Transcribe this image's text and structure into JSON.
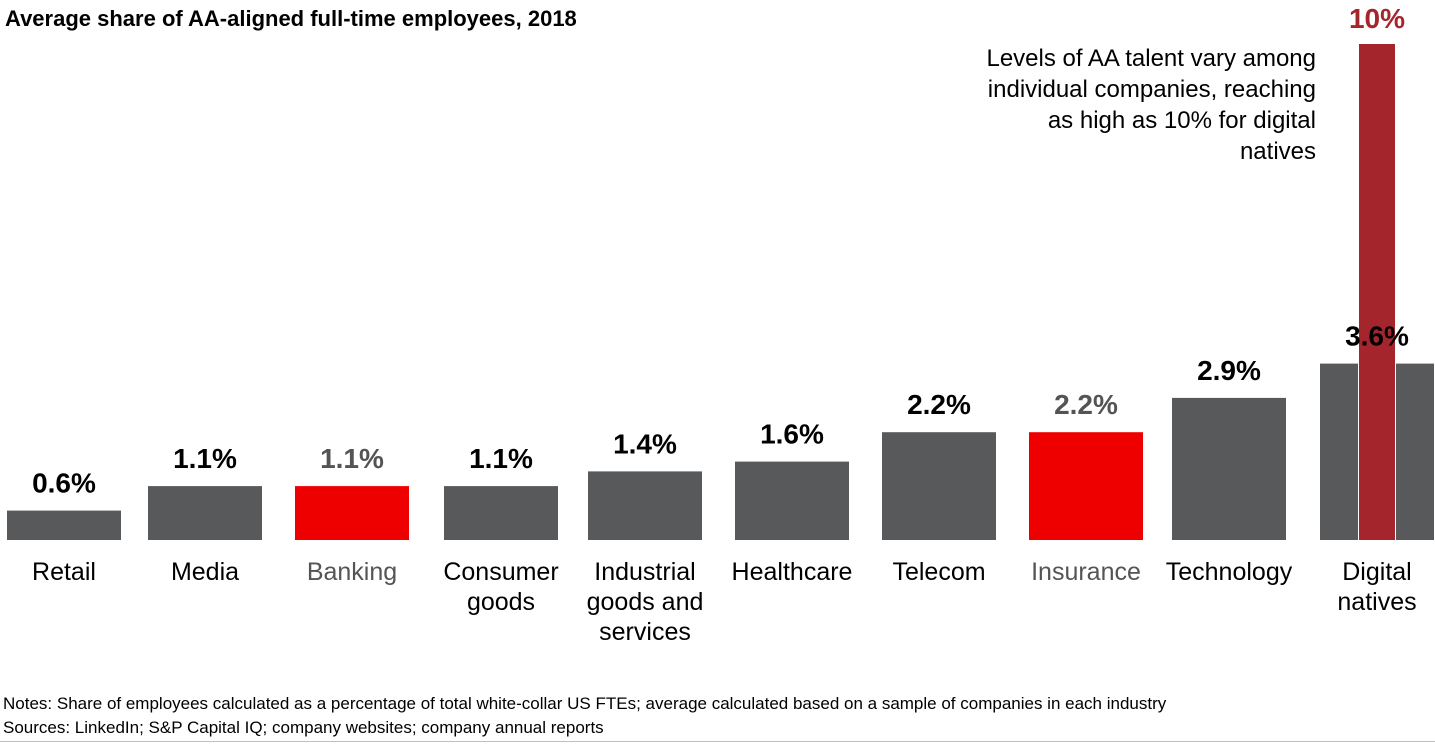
{
  "colors": {
    "default_bar": "#58595b",
    "highlight_bar": "#ee0000",
    "max_bar": "#a4262c",
    "text": "#000000",
    "highlight_text": "#545454"
  },
  "chart_data": {
    "type": "bar",
    "title": "Average share of AA-aligned full-time employees, 2018",
    "xlabel": "",
    "ylabel": "",
    "ylim": [
      0,
      10
    ],
    "grid": false,
    "categories": [
      "Retail",
      "Media",
      "Banking",
      "Consumer goods",
      "Industrial goods and services",
      "Healthcare",
      "Telecom",
      "Insurance",
      "Technology",
      "Digital natives"
    ],
    "values": [
      0.6,
      1.1,
      1.1,
      1.1,
      1.4,
      1.6,
      2.2,
      2.2,
      2.9,
      3.6
    ],
    "value_labels": [
      "0.6%",
      "1.1%",
      "1.1%",
      "1.1%",
      "1.4%",
      "1.6%",
      "2.2%",
      "2.2%",
      "2.9%",
      "3.6%"
    ],
    "highlighted": [
      "Banking",
      "Insurance"
    ],
    "max_marker": {
      "category": "Digital natives",
      "value": 10,
      "label": "10%"
    },
    "annotation": "Levels of AA talent vary among individual companies, reaching as high as 10% for digital natives"
  },
  "footer": {
    "notes": "Notes: Share of employees calculated as a percentage of total white-collar US FTEs; average calculated based on a sample of companies in each industry",
    "sources": "Sources: LinkedIn; S&P Capital IQ; company websites; company annual reports"
  }
}
